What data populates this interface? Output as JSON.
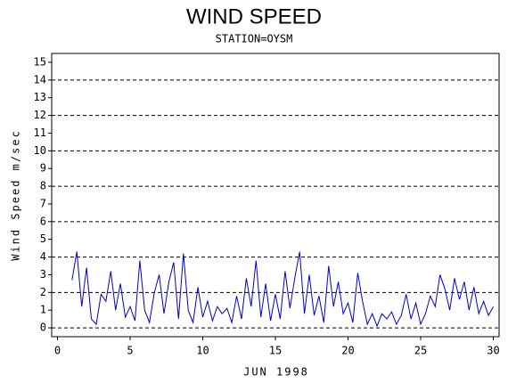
{
  "chart_data": {
    "type": "line",
    "title": "WIND SPEED",
    "subtitle": "STATION=OYSM",
    "x_label": "JUN 1998",
    "y_label": "Wind Speed m/sec",
    "xlim": [
      -0.4,
      30.4
    ],
    "xticks": [
      0,
      5,
      10,
      15,
      20,
      25,
      30
    ],
    "ylim": [
      -0.5,
      15.5
    ],
    "yticks": [
      0,
      1,
      2,
      3,
      4,
      5,
      6,
      7,
      8,
      9,
      10,
      11,
      12,
      13,
      14,
      15
    ],
    "grid": true,
    "grid_every": 2,
    "x": [
      1,
      1.33,
      1.67,
      2,
      2.33,
      2.67,
      3,
      3.33,
      3.67,
      4,
      4.33,
      4.67,
      5,
      5.33,
      5.67,
      6,
      6.33,
      6.67,
      7,
      7.33,
      7.67,
      8,
      8.33,
      8.67,
      9,
      9.33,
      9.67,
      10,
      10.33,
      10.67,
      11,
      11.33,
      11.67,
      12,
      12.33,
      12.67,
      13,
      13.33,
      13.67,
      14,
      14.33,
      14.67,
      15,
      15.33,
      15.67,
      16,
      16.33,
      16.67,
      17,
      17.33,
      17.67,
      18,
      18.33,
      18.67,
      19,
      19.33,
      19.67,
      20,
      20.33,
      20.67,
      21,
      21.33,
      21.67,
      22,
      22.33,
      22.67,
      23,
      23.33,
      23.67,
      24,
      24.33,
      24.67,
      25,
      25.33,
      25.67,
      26,
      26.33,
      26.67,
      27,
      27.33,
      27.67,
      28,
      28.33,
      28.67,
      29,
      29.33,
      29.67,
      30
    ],
    "series": [
      {
        "name": "Wind Speed",
        "color": "#0000cc",
        "values": [
          2.7,
          4.3,
          1.2,
          3.4,
          0.5,
          0.2,
          1.9,
          1.5,
          3.2,
          1.0,
          2.5,
          0.6,
          1.2,
          0.4,
          3.8,
          1.0,
          0.3,
          2.0,
          3.0,
          0.8,
          2.6,
          3.7,
          0.5,
          4.2,
          1.0,
          0.3,
          2.3,
          0.6,
          1.5,
          0.4,
          1.2,
          0.8,
          1.1,
          0.3,
          1.8,
          0.5,
          2.8,
          1.2,
          3.8,
          0.6,
          2.5,
          0.4,
          1.9,
          0.5,
          3.2,
          1.1,
          2.8,
          4.3,
          0.8,
          3.0,
          0.7,
          1.8,
          0.3,
          3.5,
          1.2,
          2.6,
          0.8,
          1.4,
          0.3,
          3.1,
          1.5,
          0.2,
          0.8,
          0.1,
          0.8,
          0.5,
          0.9,
          0.2,
          0.7,
          1.9,
          0.5,
          1.4,
          0.2,
          0.8,
          1.8,
          1.2,
          3.0,
          2.2,
          1.0,
          2.8,
          1.6,
          2.6,
          1.0,
          2.3,
          0.8,
          1.5,
          0.7,
          1.2
        ]
      }
    ]
  }
}
